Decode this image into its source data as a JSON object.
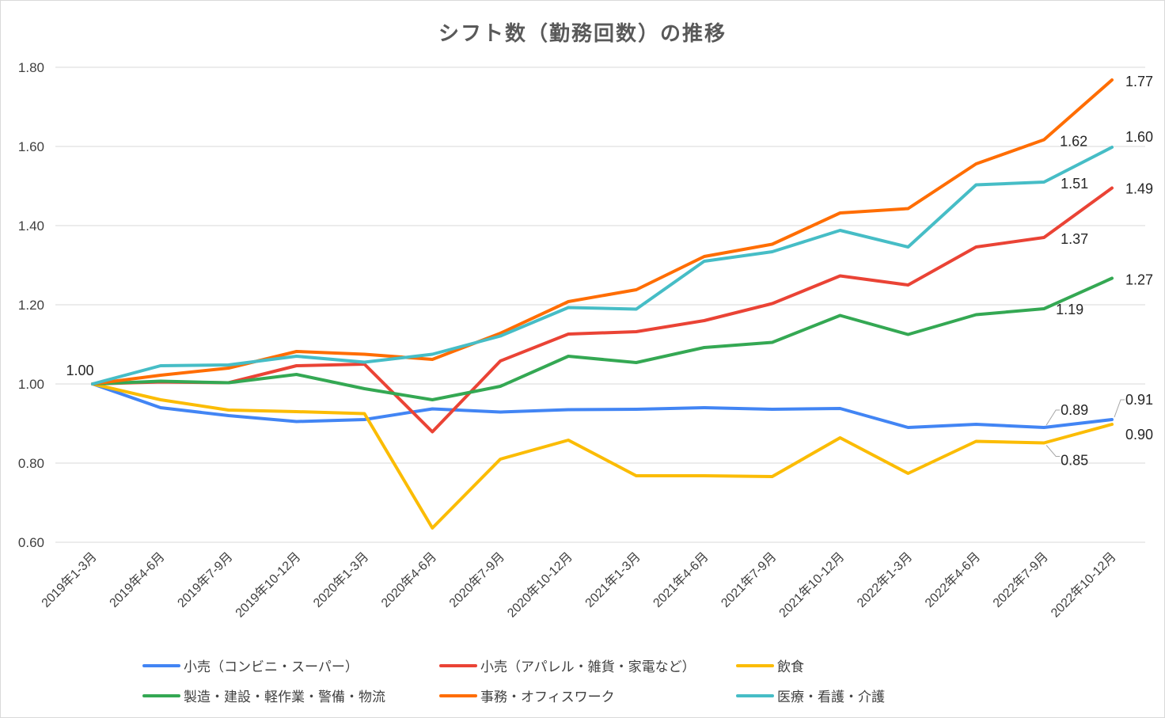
{
  "chart_data": {
    "type": "line",
    "title": "シフト数（勤務回数）の推移",
    "xlabel": "",
    "ylabel": "",
    "ylim": [
      0.6,
      1.8
    ],
    "yticks": [
      "0.60",
      "0.80",
      "1.00",
      "1.20",
      "1.40",
      "1.60",
      "1.80"
    ],
    "grid": true,
    "legend_position": "bottom",
    "categories": [
      "2019年1-3月",
      "2019年4-6月",
      "2019年7-9月",
      "2019年10-12月",
      "2020年1-3月",
      "2020年4-6月",
      "2020年7-9月",
      "2020年10-12月",
      "2021年1-3月",
      "2021年4-6月",
      "2021年7-9月",
      "2021年10-12月",
      "2022年1-3月",
      "2022年4-6月",
      "2022年7-9月",
      "2022年10-12月"
    ],
    "series": [
      {
        "name": "小売（コンビニ・スーパー）",
        "color": "#4285f4",
        "values": [
          1.0,
          0.94,
          0.92,
          0.905,
          0.91,
          0.937,
          0.929,
          0.935,
          0.936,
          0.94,
          0.936,
          0.938,
          0.89,
          0.898,
          0.89,
          0.91
        ]
      },
      {
        "name": "小売（アパレル・雑貨・家電など）",
        "color": "#ea4335",
        "values": [
          1.0,
          1.005,
          1.003,
          1.046,
          1.05,
          0.879,
          1.058,
          1.126,
          1.132,
          1.16,
          1.203,
          1.273,
          1.25,
          1.346,
          1.37,
          1.495
        ]
      },
      {
        "name": "飲食",
        "color": "#fbbc04",
        "values": [
          1.0,
          0.96,
          0.934,
          0.93,
          0.925,
          0.636,
          0.81,
          0.858,
          0.768,
          0.768,
          0.766,
          0.864,
          0.774,
          0.855,
          0.851,
          0.898
        ]
      },
      {
        "name": "製造・建設・軽作業・警備・物流",
        "color": "#34a853",
        "values": [
          1.0,
          1.007,
          1.003,
          1.024,
          0.988,
          0.96,
          0.994,
          1.07,
          1.054,
          1.092,
          1.105,
          1.173,
          1.125,
          1.175,
          1.19,
          1.267
        ]
      },
      {
        "name": "事務・オフィスワーク",
        "color": "#ff6d01",
        "values": [
          1.0,
          1.022,
          1.04,
          1.082,
          1.075,
          1.062,
          1.128,
          1.208,
          1.238,
          1.322,
          1.353,
          1.432,
          1.443,
          1.556,
          1.617,
          1.768
        ]
      },
      {
        "name": "医療・看護・介護",
        "color": "#46bdc6",
        "values": [
          1.0,
          1.046,
          1.048,
          1.07,
          1.055,
          1.075,
          1.121,
          1.193,
          1.189,
          1.31,
          1.334,
          1.388,
          1.346,
          1.503,
          1.51,
          1.598
        ]
      }
    ],
    "data_labels": [
      {
        "series": 4,
        "index": 0,
        "text": "1.00"
      },
      {
        "series": 4,
        "index": 15,
        "text": "1.77"
      },
      {
        "series": 4,
        "index": 14,
        "text": "1.62"
      },
      {
        "series": 5,
        "index": 15,
        "text": "1.60"
      },
      {
        "series": 5,
        "index": 14,
        "text": "1.51"
      },
      {
        "series": 1,
        "index": 15,
        "text": "1.49"
      },
      {
        "series": 1,
        "index": 14,
        "text": "1.37"
      },
      {
        "series": 3,
        "index": 15,
        "text": "1.27"
      },
      {
        "series": 3,
        "index": 14,
        "text": "1.19"
      },
      {
        "series": 0,
        "index": 15,
        "text": "0.91"
      },
      {
        "series": 0,
        "index": 14,
        "text": "0.89"
      },
      {
        "series": 2,
        "index": 15,
        "text": "0.90"
      },
      {
        "series": 2,
        "index": 14,
        "text": "0.85"
      }
    ]
  }
}
